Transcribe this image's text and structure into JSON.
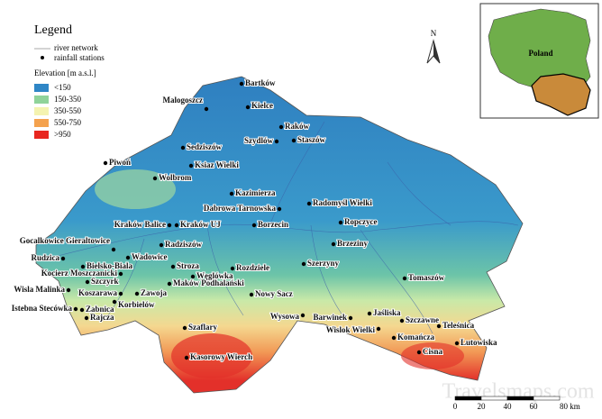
{
  "legend": {
    "title": "Legend",
    "items": [
      "river network",
      "rainfall stations"
    ],
    "elevation_title": "Elevation [m a.s.l.]",
    "classes": [
      {
        "label": "<150",
        "color": "#2f86c6"
      },
      {
        "label": "150-350",
        "color": "#8fd39a"
      },
      {
        "label": "350-550",
        "color": "#f4f3b0"
      },
      {
        "label": "550-750",
        "color": "#f4a24e"
      },
      {
        "label": ">950",
        "color": "#e8261f"
      }
    ]
  },
  "north": "N",
  "inset": {
    "label": "Poland"
  },
  "scale": {
    "labels": [
      "0",
      "20",
      "40",
      "60",
      "80 km"
    ]
  },
  "stations": [
    "Bartków",
    "Malogoszcz",
    "Kielce",
    "Raków",
    "Szydlów",
    "Staszów",
    "Sedziszów",
    "Ksiaz Wielki",
    "Piwoń",
    "Wolbrom",
    "Kazimierza",
    "Radomyśl Wielki",
    "Dabrowa Tarnowska",
    "Kraków Balice",
    "Kraków UJ",
    "Borzecin",
    "Ropczyce",
    "Gocalkowice Gieraltowice",
    "Radziszów",
    "Brzeziny",
    "Rudzica",
    "Wadowice",
    "Bielsko-Biala",
    "Stroza",
    "Kocierz Moszczanicki",
    "Węglówka",
    "Rozdziele",
    "Szerzyny",
    "Tomaszów",
    "Szczyrk",
    "Maków Podhalański",
    "Wisla Malinka",
    "Koszarawa",
    "Zawoja",
    "Nowy Sacz",
    "Korbielów",
    "Istebna Stecówka",
    "Zabnica",
    "Rajcza",
    "Szaflary",
    "Wysowa",
    "Barwinek",
    "Jaśliska",
    "Szczawne",
    "Wislok Wielki",
    "Teleśnica",
    "Komańcza",
    "Lutowiska",
    "Cisna",
    "Kasorowy Wierch"
  ],
  "watermark": "Travelsmaps.com"
}
